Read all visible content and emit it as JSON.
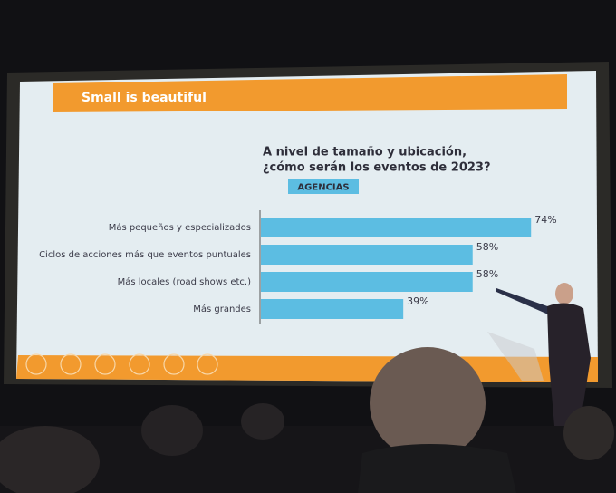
{
  "slide": {
    "header": "Small is beautiful"
  },
  "chart_data": {
    "type": "bar",
    "orientation": "horizontal",
    "title": [
      "A nivel de tamaño y ubicación,",
      "¿cómo serán los eventos de 2023?"
    ],
    "subtitle": "AGENCIAS",
    "categories": [
      "Más pequeños y especializados",
      "Ciclos de acciones más que eventos puntuales",
      "Más locales (road shows etc.)",
      "Más grandes"
    ],
    "values": [
      74,
      58,
      58,
      39
    ],
    "value_labels": [
      "74%",
      "58%",
      "58%",
      "39%"
    ],
    "color": "#5cbde2"
  }
}
